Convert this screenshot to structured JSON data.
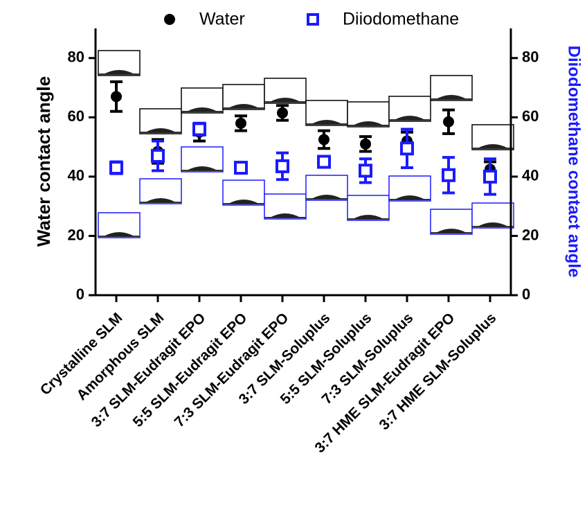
{
  "chart_data": {
    "type": "errorbar",
    "y_label": "Water contact angle",
    "y2_label": "Diiodomethane contact angle",
    "categories": [
      "Crystalline SLM",
      "Amorphous SLM",
      "3:7 SLM-Eudragit EPO",
      "5:5 SLM-Eudragit EPO",
      "7:3 SLM-Eudragit EPO",
      "3:7 SLM-Soluplus",
      "5:5 SLM-Soluplus",
      "7:3 SLM-Soluplus",
      "3:7 HME SLM-Eudragit EPO",
      "3:7 HME SLM-Soluplus"
    ],
    "series": [
      {
        "name": "Water",
        "color": "#000000",
        "marker": "circle",
        "values": [
          67,
          48.5,
          55,
          58,
          61.5,
          52.5,
          51,
          52,
          58.5,
          42.5
        ],
        "errors": [
          5,
          4,
          3,
          2.5,
          2.5,
          3,
          2.5,
          3,
          4,
          2.5
        ]
      },
      {
        "name": "Diiodomethane",
        "color": "#1a1aff",
        "marker": "square",
        "axis": "y2",
        "values": [
          43,
          47,
          56,
          43,
          43.5,
          45,
          42,
          49.5,
          40.5,
          40
        ],
        "errors": [
          2,
          5,
          2,
          1.5,
          4.5,
          1.5,
          4,
          6.5,
          6,
          6
        ]
      }
    ],
    "ylim": [
      0,
      90
    ],
    "yticks": [
      0,
      20,
      40,
      60,
      80
    ],
    "y2lim": [
      0,
      90
    ],
    "y2ticks": [
      0,
      20,
      40,
      60,
      80
    ]
  }
}
